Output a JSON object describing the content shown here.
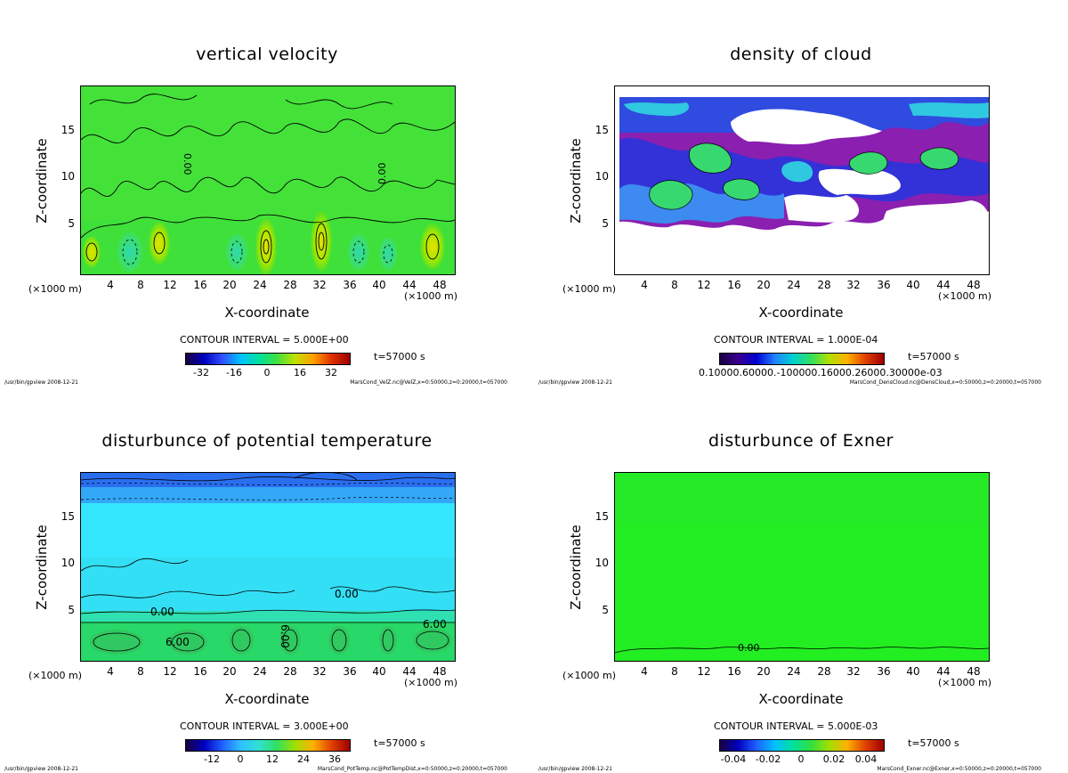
{
  "panels": [
    {
      "title": "vertical velocity",
      "ylabel": "Z-coordinate",
      "xlabel": "X-coordinate",
      "x_unit_left": "(×1000 m)",
      "x_unit_right": "(×1000 m)",
      "x_ticks": [
        "4",
        "8",
        "12",
        "16",
        "20",
        "24",
        "28",
        "32",
        "36",
        "40",
        "44",
        "48"
      ],
      "y_ticks": [
        "5",
        "10",
        "15"
      ],
      "contour_interval": "CONTOUR INTERVAL = 5.000E+00",
      "colorbar_ticks": [
        "-32",
        "-16",
        "0",
        "16",
        "32"
      ],
      "time_label": "t=57000 s",
      "footer_left": "/usr/bin/gpview  2008-12-21",
      "footer_right": "MarsCond_VelZ.nc@VelZ,x=0:50000,z=0:20000,t=057000",
      "contour_labels": [
        "0.00",
        "0.00"
      ]
    },
    {
      "title": "density of cloud",
      "ylabel": "Z-coordinate",
      "xlabel": "X-coordinate",
      "x_unit_left": "(×1000 m)",
      "x_unit_right": "(×1000 m)",
      "x_ticks": [
        "4",
        "8",
        "12",
        "16",
        "20",
        "24",
        "28",
        "32",
        "36",
        "40",
        "44",
        "48"
      ],
      "y_ticks": [
        "5",
        "10",
        "15"
      ],
      "contour_interval": "CONTOUR INTERVAL = 1.000E-04",
      "colorbar_ticks_text": "0.10000.60000.-100000.16000.26000.30000e-03",
      "time_label": "t=57000 s",
      "footer_left": "/usr/bin/gpview  2008-12-21",
      "footer_right": "MarsCond_DensCloud.nc@DensCloud,x=0:50000,z=0:20000,t=057000"
    },
    {
      "title": "disturbunce of potential temperature",
      "ylabel": "Z-coordinate",
      "xlabel": "X-coordinate",
      "x_unit_left": "(×1000 m)",
      "x_unit_right": "(×1000 m)",
      "x_ticks": [
        "4",
        "8",
        "12",
        "16",
        "20",
        "24",
        "28",
        "32",
        "36",
        "40",
        "44",
        "48"
      ],
      "y_ticks": [
        "5",
        "10",
        "15"
      ],
      "contour_interval": "CONTOUR INTERVAL = 3.000E+00",
      "colorbar_ticks": [
        "-12",
        "0",
        "12",
        "24",
        "36"
      ],
      "time_label": "t=57000 s",
      "footer_left": "/usr/bin/gpview  2008-12-21",
      "footer_right": "MarsCond_PotTemp.nc@PotTempDist,x=0:50000,z=0:20000,t=057000",
      "contour_labels": [
        "0.00",
        "0.00",
        "6.00",
        "6.00",
        "6.00"
      ]
    },
    {
      "title": "disturbunce of Exner",
      "ylabel": "Z-coordinate",
      "xlabel": "X-coordinate",
      "x_unit_left": "(×1000 m)",
      "x_unit_right": "(×1000 m)",
      "x_ticks": [
        "4",
        "8",
        "12",
        "16",
        "20",
        "24",
        "28",
        "32",
        "36",
        "40",
        "44",
        "48"
      ],
      "y_ticks": [
        "5",
        "10",
        "15"
      ],
      "contour_interval": "CONTOUR INTERVAL = 5.000E-03",
      "colorbar_ticks": [
        "-0.04",
        "-0.02",
        "0",
        "0.02",
        "0.04"
      ],
      "time_label": "t=57000 s",
      "footer_left": "/usr/bin/gpview  2008-12-21",
      "footer_right": "MarsCond_Exner.nc@Exner,x=0:50000,z=0:20000,t=057000",
      "contour_labels": [
        "0.00"
      ]
    }
  ],
  "chart_data": [
    {
      "type": "heatmap",
      "title": "vertical velocity",
      "xlabel": "X-coordinate",
      "ylabel": "Z-coordinate",
      "xlim": [
        0,
        50
      ],
      "ylim": [
        0,
        20
      ],
      "x_unit": "×1000 m",
      "colorbar_range": [
        -40,
        40
      ],
      "contour_interval": 5.0,
      "colors": {
        "background": "#22dd22",
        "low": "#0000aa",
        "high": "#aa0000"
      }
    },
    {
      "type": "heatmap",
      "title": "density of cloud",
      "xlabel": "X-coordinate",
      "ylabel": "Z-coordinate",
      "xlim": [
        0,
        50
      ],
      "ylim": [
        0,
        20
      ],
      "x_unit": "×1000 m",
      "contour_interval": 0.0001,
      "colors": {
        "cloud_edge": "#8a1fb0",
        "cloud_mid": "#2f33d8",
        "cloud_core": "#40e060"
      }
    },
    {
      "type": "heatmap",
      "title": "disturbunce of potential temperature",
      "xlabel": "X-coordinate",
      "ylabel": "Z-coordinate",
      "xlim": [
        0,
        50
      ],
      "ylim": [
        0,
        20
      ],
      "x_unit": "×1000 m",
      "colorbar_range": [
        -18,
        42
      ],
      "contour_interval": 3.0,
      "colors": {
        "upper": "#2a6ef0",
        "middle": "#30e8ff",
        "lower": "#20d060"
      }
    },
    {
      "type": "heatmap",
      "title": "disturbunce of Exner",
      "xlabel": "X-coordinate",
      "ylabel": "Z-coordinate",
      "xlim": [
        0,
        50
      ],
      "ylim": [
        0,
        20
      ],
      "x_unit": "×1000 m",
      "colorbar_range": [
        -0.05,
        0.05
      ],
      "contour_interval": 0.005,
      "colors": {
        "field": "#22ee22"
      }
    }
  ]
}
